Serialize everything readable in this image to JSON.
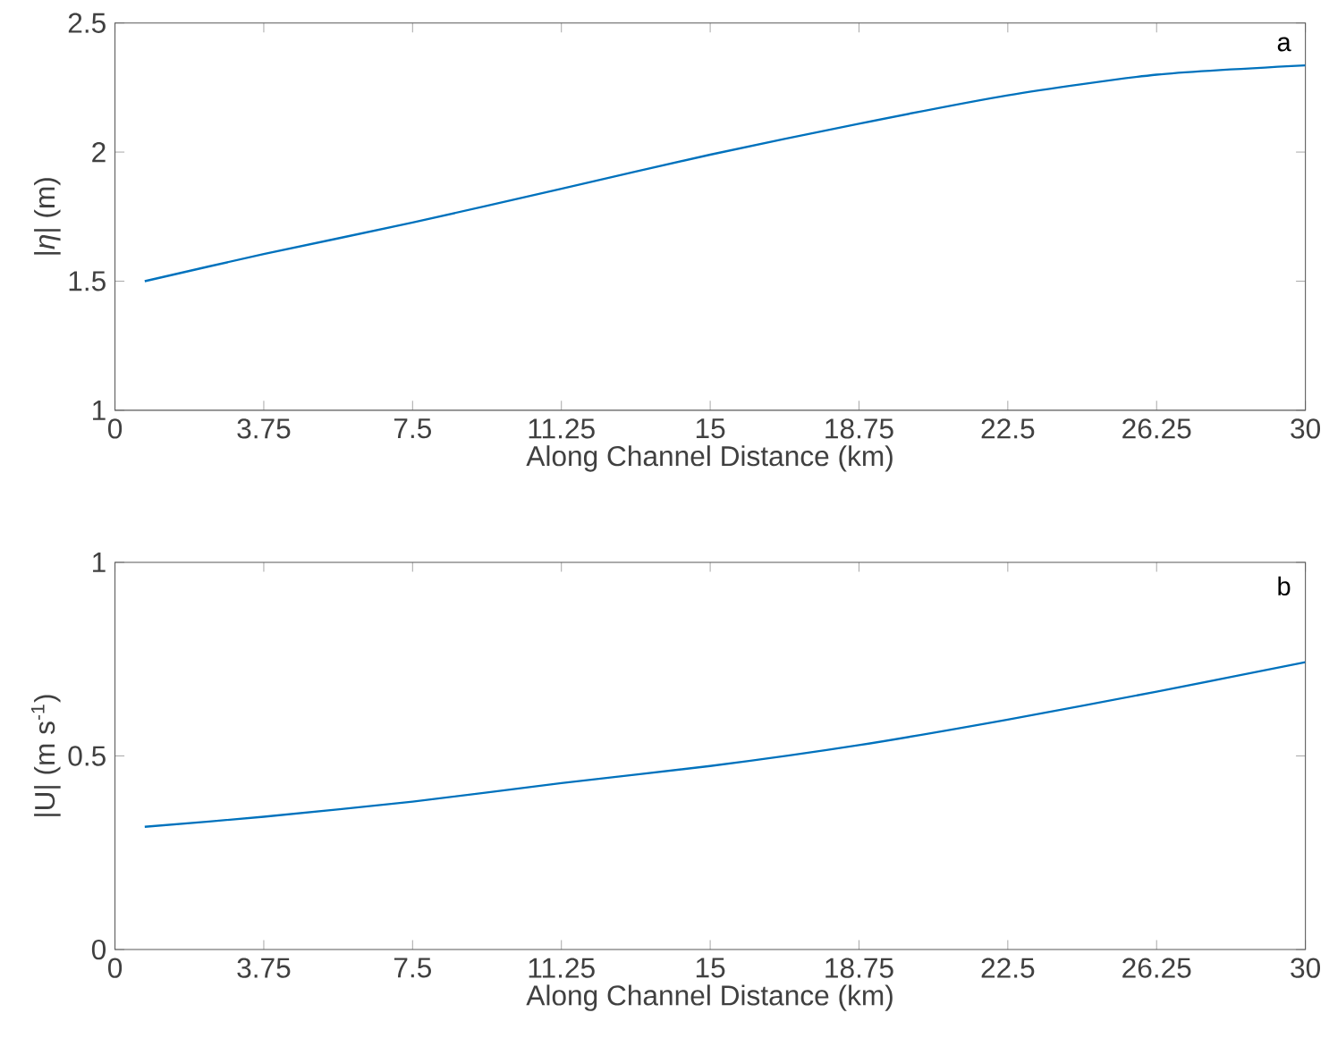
{
  "chart_data": [
    {
      "type": "line",
      "xlabel": "Along Channel Distance (km)",
      "ylabel": "|*η*| (m)",
      "annotations": [
        "a"
      ],
      "x": [
        0.75,
        3.75,
        7.5,
        11.25,
        15,
        18.75,
        22.5,
        26.25,
        30
      ],
      "series": [
        {
          "color": "#0072bd",
          "values": [
            1.5,
            1.605,
            1.727,
            1.858,
            1.99,
            2.11,
            2.22,
            2.3,
            2.336
          ]
        }
      ],
      "xlim": [
        0,
        30
      ],
      "ylim": [
        1,
        2.5
      ],
      "xticks": [
        0,
        3.75,
        7.5,
        11.25,
        15,
        18.75,
        22.5,
        26.25,
        30
      ],
      "yticks": [
        1,
        1.5,
        2,
        2.5
      ]
    },
    {
      "type": "line",
      "xlabel": "Along Channel Distance (km)",
      "ylabel": "|U| (m s$^{-1}$)",
      "annotations": [
        "b"
      ],
      "x": [
        0.75,
        3.75,
        7.5,
        11.25,
        15,
        18.75,
        22.5,
        26.25,
        30
      ],
      "series": [
        {
          "color": "#0072bd",
          "values": [
            0.317,
            0.343,
            0.382,
            0.43,
            0.474,
            0.528,
            0.594,
            0.666,
            0.742
          ]
        }
      ],
      "xlim": [
        0,
        30
      ],
      "ylim": [
        0,
        1
      ],
      "xticks": [
        0,
        3.75,
        7.5,
        11.25,
        15,
        18.75,
        22.5,
        26.25,
        30
      ],
      "yticks": [
        0,
        0.5,
        1
      ]
    }
  ]
}
